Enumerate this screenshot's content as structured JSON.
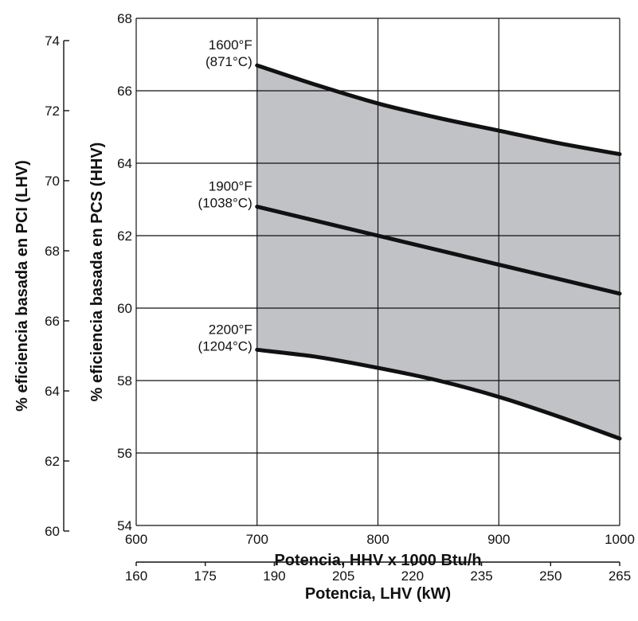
{
  "chart_data": {
    "type": "area",
    "title": "",
    "grid": true,
    "x_primary": {
      "label": "Potencia, HHV x 1000 Btu/h",
      "range": [
        600,
        1000
      ],
      "ticks": [
        600,
        700,
        800,
        900,
        1000
      ]
    },
    "x_secondary": {
      "label": "Potencia, LHV (kW)",
      "range": [
        160,
        265
      ],
      "ticks": [
        160,
        175,
        190,
        205,
        220,
        235,
        250,
        265
      ]
    },
    "y_primary": {
      "label": "% eficiencia basada en PCS (HHV)",
      "range": [
        54,
        68
      ],
      "ticks": [
        54,
        56,
        58,
        60,
        62,
        64,
        66,
        68
      ]
    },
    "y_secondary": {
      "label": "% eficiencia basada en PCI (LHV)",
      "range": [
        60,
        74
      ],
      "ticks": [
        60,
        62,
        64,
        66,
        68,
        70,
        72,
        74
      ]
    },
    "shading": {
      "between": [
        "1600°F",
        "2200°F"
      ],
      "x_range": [
        700,
        1000
      ],
      "color": "#c1c2c6"
    },
    "series": [
      {
        "name": "1600°F",
        "label_line1": "1600°F",
        "label_line2": "(871°C)",
        "x": [
          700,
          750,
          800,
          850,
          900,
          950,
          1000
        ],
        "y": [
          66.7,
          66.15,
          65.65,
          65.25,
          64.9,
          64.55,
          64.25
        ]
      },
      {
        "name": "1900°F",
        "label_line1": "1900°F",
        "label_line2": "(1038°C)",
        "x": [
          700,
          750,
          800,
          850,
          900,
          950,
          1000
        ],
        "y": [
          62.8,
          62.4,
          62.0,
          61.6,
          61.2,
          60.8,
          60.4
        ]
      },
      {
        "name": "2200°F",
        "label_line1": "2200°F",
        "label_line2": "(1204°C)",
        "x": [
          700,
          750,
          800,
          850,
          900,
          950,
          1000
        ],
        "y": [
          58.85,
          58.65,
          58.35,
          58.0,
          57.55,
          57.0,
          56.4
        ]
      }
    ],
    "colors": {
      "curve": "#111111",
      "band": "#c1c2c6",
      "grid": "#111111"
    }
  }
}
